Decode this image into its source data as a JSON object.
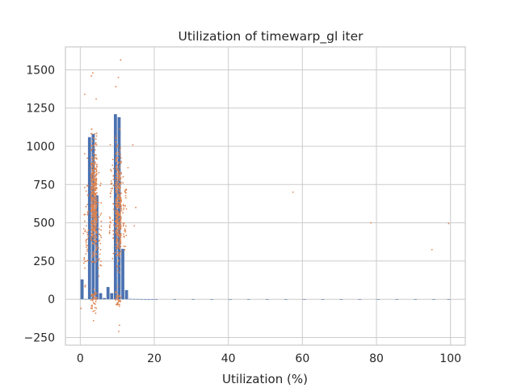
{
  "chart_data": {
    "type": "bar",
    "title": "Utilization of timewarp_gl iter",
    "xlabel": "Utilization (%)",
    "ylabel": "",
    "xlim": [
      -4,
      104
    ],
    "ylim": [
      -300,
      1650
    ],
    "xticks": [
      0,
      20,
      40,
      60,
      80,
      100
    ],
    "yticks": [
      -250,
      0,
      250,
      500,
      750,
      1000,
      1250,
      1500
    ],
    "grid": true,
    "colors": {
      "bars": "#4c72b0",
      "points": "#dd8452",
      "grid": "#cccccc",
      "spine": "#cccccc"
    },
    "bar_width": 1,
    "bars": [
      {
        "x": 0.5,
        "value": 130
      },
      {
        "x": 1.5,
        "value": 2
      },
      {
        "x": 2.5,
        "value": 1060
      },
      {
        "x": 3.5,
        "value": 1080
      },
      {
        "x": 4.5,
        "value": 680
      },
      {
        "x": 5.5,
        "value": 40
      },
      {
        "x": 6.5,
        "value": 8
      },
      {
        "x": 7.5,
        "value": 80
      },
      {
        "x": 8.5,
        "value": 40
      },
      {
        "x": 9.5,
        "value": 1210
      },
      {
        "x": 10.5,
        "value": 1190
      },
      {
        "x": 11.5,
        "value": 330
      },
      {
        "x": 12.5,
        "value": 60
      },
      {
        "x": 13.5,
        "value": 3
      },
      {
        "x": 14.5,
        "value": 2
      },
      {
        "x": 15.5,
        "value": 2
      },
      {
        "x": 16.5,
        "value": 1
      },
      {
        "x": 17.5,
        "value": 1
      },
      {
        "x": 18.5,
        "value": 1
      },
      {
        "x": 19.5,
        "value": 1
      },
      {
        "x": 20.5,
        "value": 1
      },
      {
        "x": 25.5,
        "value": 1
      },
      {
        "x": 30.5,
        "value": 1
      },
      {
        "x": 35.5,
        "value": 1
      },
      {
        "x": 40.5,
        "value": 1
      },
      {
        "x": 45.5,
        "value": 1
      },
      {
        "x": 50.5,
        "value": 1
      },
      {
        "x": 55.5,
        "value": 1
      },
      {
        "x": 60.5,
        "value": 1
      },
      {
        "x": 65.5,
        "value": 1
      },
      {
        "x": 70.5,
        "value": 1
      },
      {
        "x": 75.5,
        "value": 1
      },
      {
        "x": 80.5,
        "value": 1
      },
      {
        "x": 85.5,
        "value": 1
      },
      {
        "x": 90.5,
        "value": 1
      },
      {
        "x": 95.5,
        "value": 1
      },
      {
        "x": 99.5,
        "value": 1
      }
    ],
    "scatter_clusters": [
      {
        "x_center": 3.7,
        "x_spread": 0.8,
        "y_mean": 650,
        "y_spread": 330,
        "count": 460
      },
      {
        "x_center": 10.3,
        "x_spread": 0.8,
        "y_mean": 620,
        "y_spread": 330,
        "count": 360
      },
      {
        "x_center": 1.5,
        "x_spread": 0.7,
        "y_mean": 500,
        "y_spread": 350,
        "count": 45
      },
      {
        "x_center": 5.3,
        "x_spread": 0.4,
        "y_mean": 400,
        "y_spread": 300,
        "count": 30
      },
      {
        "x_center": 8.5,
        "x_spread": 0.6,
        "y_mean": 600,
        "y_spread": 330,
        "count": 40
      },
      {
        "x_center": 12.0,
        "x_spread": 0.5,
        "y_mean": 550,
        "y_spread": 280,
        "count": 35
      },
      {
        "x_center": 3.7,
        "x_spread": 0.8,
        "y_mean": 0,
        "y_spread": 60,
        "count": 45
      },
      {
        "x_center": 10.3,
        "x_spread": 0.8,
        "y_mean": 0,
        "y_spread": 60,
        "count": 35
      }
    ],
    "scatter_points": [
      {
        "x": 3.4,
        "y": 1480
      },
      {
        "x": 3.0,
        "y": 1460
      },
      {
        "x": 4.3,
        "y": 1310
      },
      {
        "x": 10.9,
        "y": 1565
      },
      {
        "x": 10.3,
        "y": 1450
      },
      {
        "x": 9.6,
        "y": 1390
      },
      {
        "x": 1.2,
        "y": 1340
      },
      {
        "x": 3.6,
        "y": -140
      },
      {
        "x": 10.4,
        "y": -210
      },
      {
        "x": 10.6,
        "y": -170
      },
      {
        "x": 14.2,
        "y": 1010
      },
      {
        "x": 15.0,
        "y": 600
      },
      {
        "x": 14.6,
        "y": 480
      },
      {
        "x": 12.9,
        "y": 860
      },
      {
        "x": 0.2,
        "y": -60
      },
      {
        "x": 57.5,
        "y": 700
      },
      {
        "x": 78.5,
        "y": 500
      },
      {
        "x": 95.0,
        "y": 325
      },
      {
        "x": 99.5,
        "y": 495
      }
    ]
  }
}
